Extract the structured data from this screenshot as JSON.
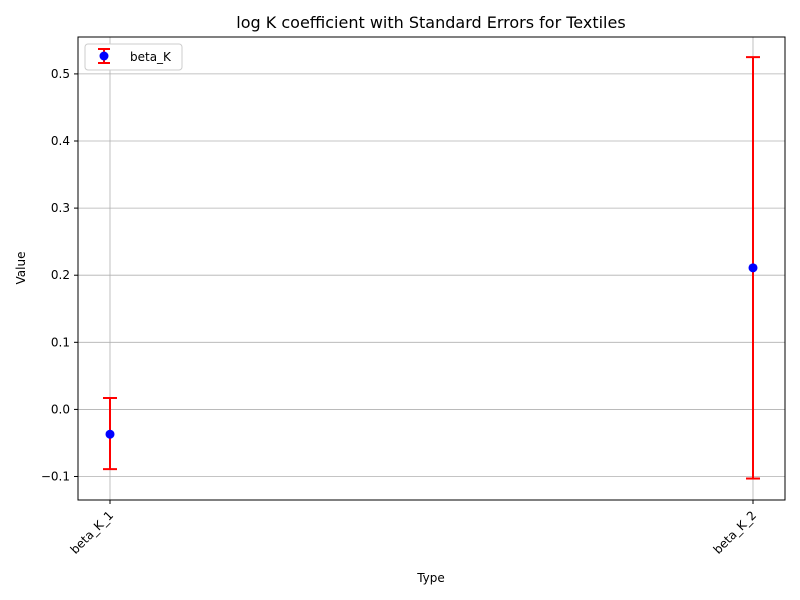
{
  "chart_data": {
    "type": "scatter",
    "title": "log K coefficient with Standard Errors for Textiles",
    "xlabel": "Type",
    "ylabel": "Value",
    "categories": [
      "beta_K_1",
      "beta_K_2"
    ],
    "series": [
      {
        "name": "beta_K",
        "values": [
          -0.037,
          0.211
        ],
        "error_lower": [
          -0.089,
          -0.103
        ],
        "error_upper": [
          0.017,
          0.525
        ]
      }
    ],
    "ylim": [
      -0.135,
      0.555
    ],
    "yticks": [
      -0.1,
      0.0,
      0.1,
      0.2,
      0.3,
      0.4,
      0.5
    ],
    "ytick_labels": [
      "−0.1",
      "0.0",
      "0.1",
      "0.2",
      "0.3",
      "0.4",
      "0.5"
    ],
    "grid": true,
    "legend": "upper-left",
    "colors": {
      "marker": "#0000ff",
      "errorbar": "#ff0000",
      "grid": "#b0b0b0"
    }
  }
}
